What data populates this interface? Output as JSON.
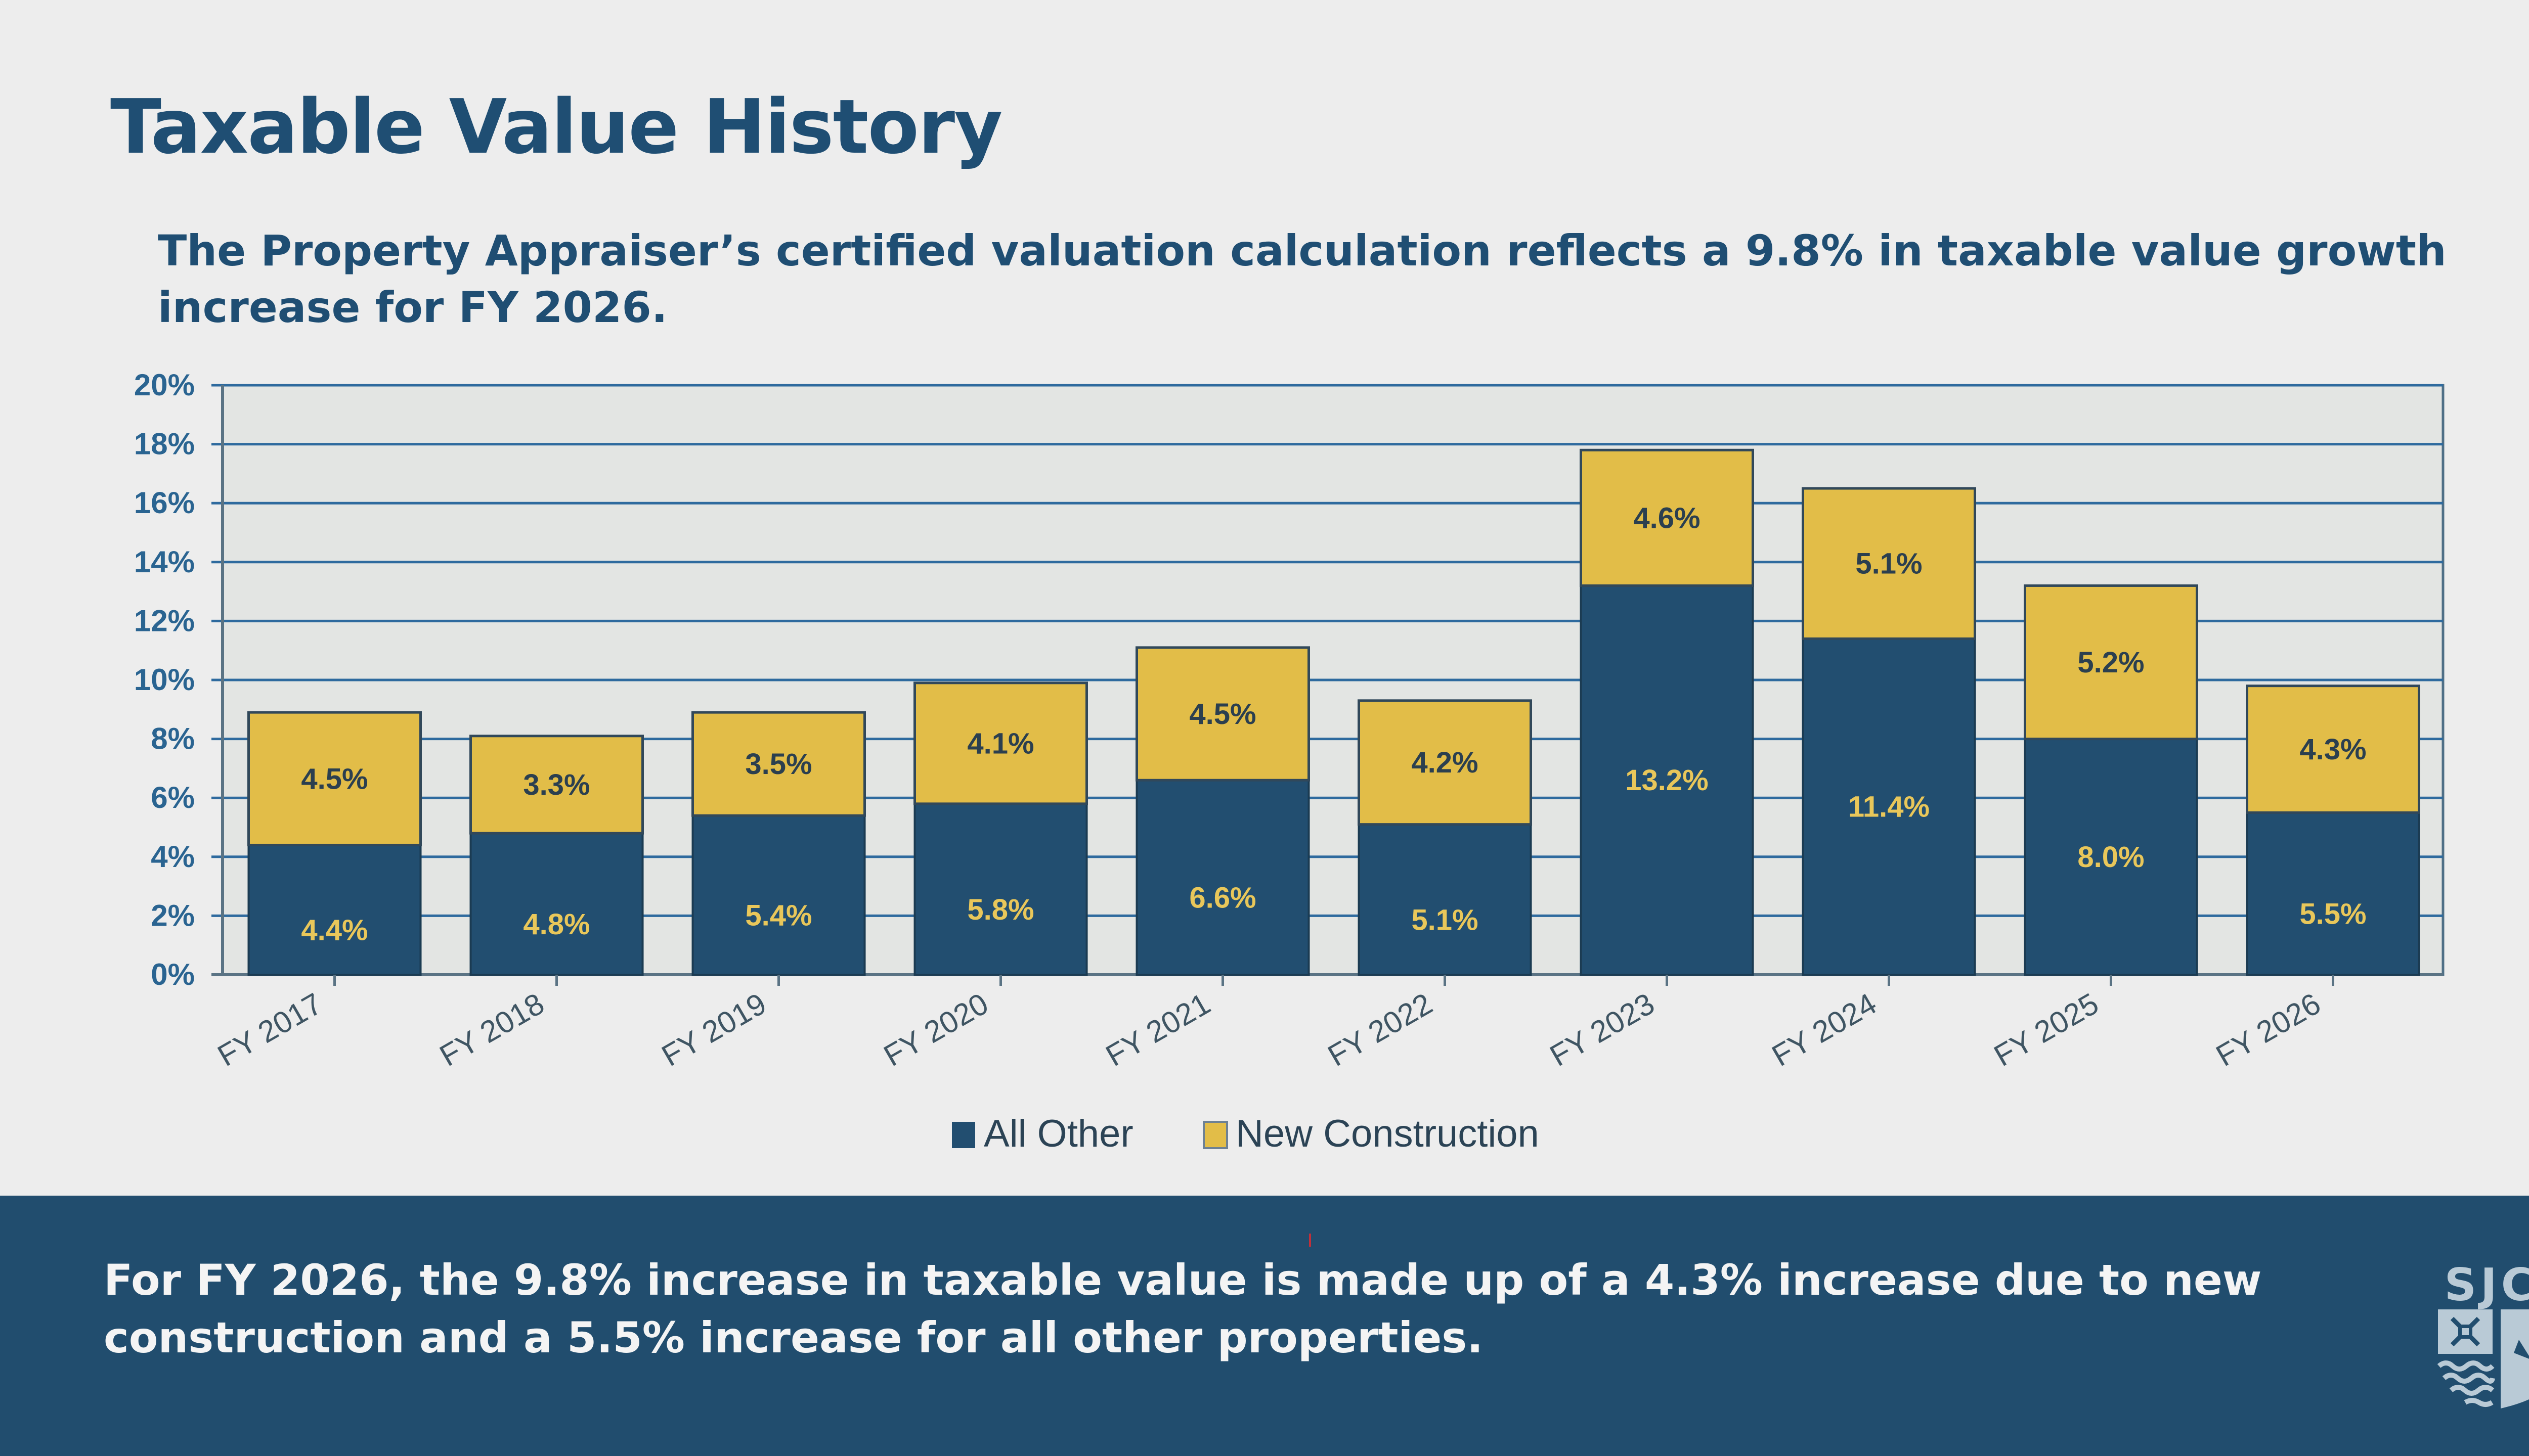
{
  "slide": {
    "title": "Taxable Value History",
    "subtitle": "The Property Appraiser’s certified valuation calculation reflects a 9.8% in taxable value growth increase for FY 2026.",
    "footer_text": "For FY 2026, the 9.8% increase in taxable value is made up of a 4.3% increase due to new construction and a 5.5% increase for all other properties.",
    "logo_text": "SJC",
    "logo_icon": "county-shield-crest-icon"
  },
  "colors": {
    "background": "#ededed",
    "plot_background": "#e3e5e3",
    "title": "#1f4e73",
    "banner": "#214d6e",
    "all_other": "#224e70",
    "new_construction": "#e2bd48",
    "gridline": "#2e6a9e",
    "label_on_gold": "#2b3f4f",
    "label_on_navy": "#e9c75a"
  },
  "chart_data": {
    "type": "bar",
    "stacked": true,
    "title": "",
    "xlabel": "",
    "ylabel": "",
    "ylim": [
      0,
      20
    ],
    "yticks": [
      0,
      2,
      4,
      6,
      8,
      10,
      12,
      14,
      16,
      18,
      20
    ],
    "ytick_labels": [
      "0%",
      "2%",
      "4%",
      "6%",
      "8%",
      "10%",
      "12%",
      "14%",
      "16%",
      "18%",
      "20%"
    ],
    "grid": true,
    "legend_position": "bottom-center",
    "categories": [
      "FY 2017",
      "FY 2018",
      "FY 2019",
      "FY 2020",
      "FY 2021",
      "FY 2022",
      "FY 2023",
      "FY 2024",
      "FY 2025",
      "FY 2026"
    ],
    "series": [
      {
        "name": "All Other",
        "values": [
          4.4,
          4.8,
          5.4,
          5.8,
          6.6,
          5.1,
          13.2,
          11.4,
          8.0,
          5.5
        ],
        "labels": [
          "4.4%",
          "4.8%",
          "5.4%",
          "5.8%",
          "6.6%",
          "5.1%",
          "13.2%",
          "11.4%",
          "8.0%",
          "5.5%"
        ]
      },
      {
        "name": "New Construction",
        "values": [
          4.5,
          3.3,
          3.5,
          4.1,
          4.5,
          4.2,
          4.6,
          5.1,
          5.2,
          4.3
        ],
        "labels": [
          "4.5%",
          "3.3%",
          "3.5%",
          "4.1%",
          "4.5%",
          "4.2%",
          "4.6%",
          "5.1%",
          "5.2%",
          "4.3%"
        ]
      }
    ]
  }
}
